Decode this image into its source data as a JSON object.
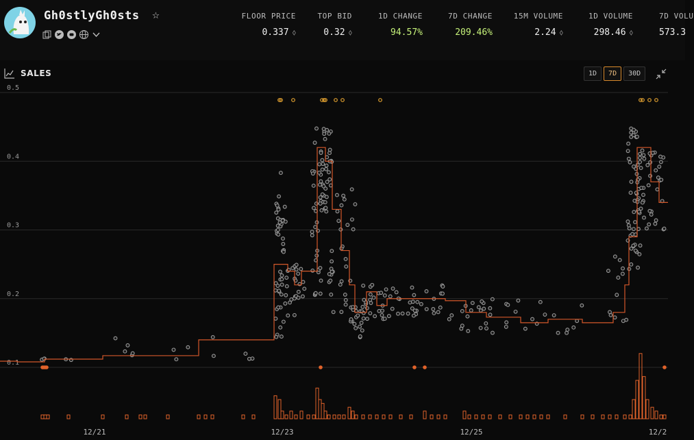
{
  "header": {
    "collection_name": "Gh0stlyGh0sts",
    "stats": [
      {
        "label": "FLOOR PRICE",
        "value": "0.337",
        "eth": true
      },
      {
        "label": "TOP BID",
        "value": "0.32",
        "eth": true
      },
      {
        "label": "1D CHANGE",
        "value": "94.57%",
        "eth": false,
        "positive": true
      },
      {
        "label": "7D CHANGE",
        "value": "209.46%",
        "eth": false,
        "positive": true
      },
      {
        "label": "15M VOLUME",
        "value": "2.24",
        "eth": true
      },
      {
        "label": "1D VOLUME",
        "value": "298.46",
        "eth": true
      },
      {
        "label": "7D VOLU",
        "value": "573.3",
        "eth": false
      }
    ]
  },
  "panel": {
    "title": "SALES",
    "ranges": [
      "1D",
      "7D",
      "30D"
    ],
    "active_range": "7D"
  },
  "colors": {
    "floor_line": "#d4582a",
    "sale_dot": "#9a9a9a",
    "volume_bar": "#e0622a",
    "listing_dot": "#e0a030"
  },
  "chart_data": {
    "type": "scatter",
    "ylim": [
      0.1,
      0.5
    ],
    "y_ticks": [
      "0.1",
      "0.2",
      "0.3",
      "0.4",
      "0.5"
    ],
    "x_ticks": [
      "12/21",
      "12/23",
      "12/25",
      "12/2"
    ],
    "floor_price_step": [
      [
        0,
        0.109
      ],
      [
        25,
        0.108
      ],
      [
        65,
        0.112
      ],
      [
        150,
        0.117
      ],
      [
        290,
        0.14
      ],
      [
        400,
        0.25
      ],
      [
        420,
        0.24
      ],
      [
        430,
        0.22
      ],
      [
        440,
        0.24
      ],
      [
        463,
        0.42
      ],
      [
        475,
        0.4
      ],
      [
        485,
        0.33
      ],
      [
        498,
        0.27
      ],
      [
        510,
        0.22
      ],
      [
        518,
        0.18
      ],
      [
        535,
        0.21
      ],
      [
        550,
        0.19
      ],
      [
        565,
        0.2
      ],
      [
        610,
        0.2
      ],
      [
        650,
        0.197
      ],
      [
        680,
        0.18
      ],
      [
        710,
        0.173
      ],
      [
        760,
        0.165
      ],
      [
        800,
        0.17
      ],
      [
        850,
        0.165
      ],
      [
        895,
        0.18
      ],
      [
        912,
        0.22
      ],
      [
        918,
        0.29
      ],
      [
        930,
        0.42
      ],
      [
        950,
        0.37
      ],
      [
        962,
        0.34
      ],
      [
        972,
        0.34
      ]
    ],
    "sales_clusters": [
      {
        "x": [
          60,
          70
        ],
        "y": [
          0.11,
          0.115
        ],
        "n": 3
      },
      {
        "x": [
          95,
          110
        ],
        "y": [
          0.11,
          0.112
        ],
        "n": 2
      },
      {
        "x": [
          150,
          215
        ],
        "y": [
          0.115,
          0.15
        ],
        "n": 5
      },
      {
        "x": [
          245,
          315
        ],
        "y": [
          0.11,
          0.145
        ],
        "n": 5
      },
      {
        "x": [
          355,
          375
        ],
        "y": [
          0.11,
          0.12
        ],
        "n": 3
      },
      {
        "x": [
          402,
          418
        ],
        "y": [
          0.14,
          0.34
        ],
        "n": 40
      },
      {
        "x": [
          404,
          415
        ],
        "y": [
          0.3,
          0.4
        ],
        "n": 10
      },
      {
        "x": [
          418,
          445
        ],
        "y": [
          0.17,
          0.25
        ],
        "n": 25
      },
      {
        "x": [
          455,
          470
        ],
        "y": [
          0.2,
          0.45
        ],
        "n": 30
      },
      {
        "x": [
          466,
          485
        ],
        "y": [
          0.32,
          0.45
        ],
        "n": 40
      },
      {
        "x": [
          480,
          520
        ],
        "y": [
          0.18,
          0.36
        ],
        "n": 35
      },
      {
        "x": [
          512,
          530
        ],
        "y": [
          0.14,
          0.2
        ],
        "n": 20
      },
      {
        "x": [
          530,
          575
        ],
        "y": [
          0.17,
          0.22
        ],
        "n": 30
      },
      {
        "x": [
          575,
          660
        ],
        "y": [
          0.17,
          0.22
        ],
        "n": 30
      },
      {
        "x": [
          670,
          720
        ],
        "y": [
          0.15,
          0.2
        ],
        "n": 20
      },
      {
        "x": [
          720,
          880
        ],
        "y": [
          0.15,
          0.2
        ],
        "n": 18
      },
      {
        "x": [
          885,
          915
        ],
        "y": [
          0.16,
          0.27
        ],
        "n": 12
      },
      {
        "x": [
          916,
          935
        ],
        "y": [
          0.24,
          0.45
        ],
        "n": 50
      },
      {
        "x": [
          930,
          970
        ],
        "y": [
          0.3,
          0.42
        ],
        "n": 45
      }
    ],
    "top_listings": [
      408,
      410,
      428,
      470,
      473,
      475,
      490,
      500,
      555,
      935,
      938,
      948,
      958
    ],
    "bottom_markers": [
      62,
      64,
      66,
      68,
      468,
      605,
      620,
      970
    ],
    "volume_bars": [
      [
        62,
        1
      ],
      [
        66,
        1
      ],
      [
        70,
        1
      ],
      [
        100,
        1
      ],
      [
        150,
        1
      ],
      [
        185,
        1
      ],
      [
        205,
        1
      ],
      [
        212,
        1
      ],
      [
        245,
        1
      ],
      [
        290,
        1
      ],
      [
        300,
        1
      ],
      [
        310,
        1
      ],
      [
        355,
        1
      ],
      [
        370,
        1
      ],
      [
        402,
        6
      ],
      [
        408,
        5
      ],
      [
        412,
        2
      ],
      [
        418,
        1
      ],
      [
        425,
        2
      ],
      [
        432,
        1
      ],
      [
        440,
        2
      ],
      [
        450,
        1
      ],
      [
        458,
        1
      ],
      [
        463,
        8
      ],
      [
        467,
        5
      ],
      [
        471,
        4
      ],
      [
        475,
        2
      ],
      [
        480,
        1
      ],
      [
        488,
        1
      ],
      [
        495,
        1
      ],
      [
        502,
        1
      ],
      [
        510,
        3
      ],
      [
        515,
        2
      ],
      [
        520,
        1
      ],
      [
        530,
        1
      ],
      [
        540,
        1
      ],
      [
        550,
        1
      ],
      [
        560,
        1
      ],
      [
        570,
        1
      ],
      [
        585,
        1
      ],
      [
        600,
        1
      ],
      [
        620,
        2
      ],
      [
        630,
        1
      ],
      [
        640,
        1
      ],
      [
        650,
        1
      ],
      [
        678,
        2
      ],
      [
        685,
        1
      ],
      [
        695,
        1
      ],
      [
        705,
        1
      ],
      [
        715,
        1
      ],
      [
        730,
        1
      ],
      [
        745,
        1
      ],
      [
        760,
        1
      ],
      [
        770,
        1
      ],
      [
        780,
        1
      ],
      [
        790,
        1
      ],
      [
        800,
        1
      ],
      [
        825,
        1
      ],
      [
        850,
        1
      ],
      [
        865,
        1
      ],
      [
        880,
        1
      ],
      [
        890,
        1
      ],
      [
        900,
        1
      ],
      [
        912,
        1
      ],
      [
        920,
        1
      ],
      [
        925,
        5
      ],
      [
        930,
        10
      ],
      [
        935,
        17
      ],
      [
        940,
        11
      ],
      [
        945,
        5
      ],
      [
        952,
        3
      ],
      [
        958,
        2
      ],
      [
        965,
        1
      ],
      [
        970,
        1
      ]
    ]
  }
}
